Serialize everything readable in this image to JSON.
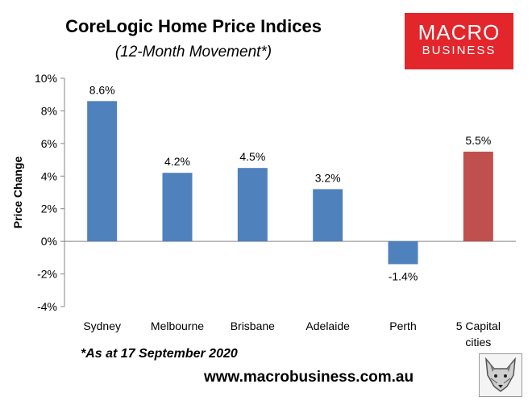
{
  "header": {
    "title": "CoreLogic Home Price Indices",
    "subtitle": "(12-Month Movement*)"
  },
  "logo": {
    "line1": "MACRO",
    "line2": "BUSINESS",
    "color": "#e3262b"
  },
  "footnote": "*As at 17 September 2020",
  "website": "www.macrobusiness.com.au",
  "fox_icon": "fox-head-icon",
  "chart_data": {
    "type": "bar",
    "ylabel": "Price Change",
    "ylim": [
      -4,
      10
    ],
    "yticks": [
      -4,
      -2,
      0,
      2,
      4,
      6,
      8,
      10
    ],
    "ytick_labels": [
      "-4%",
      "-2%",
      "0%",
      "2%",
      "4%",
      "6%",
      "8%",
      "10%"
    ],
    "grid": false,
    "categories": [
      "Sydney",
      "Melbourne",
      "Brisbane",
      "Adelaide",
      "Perth",
      "5 Capital cities"
    ],
    "category_lines": [
      [
        "Sydney"
      ],
      [
        "Melbourne"
      ],
      [
        "Brisbane"
      ],
      [
        "Adelaide"
      ],
      [
        "Perth"
      ],
      [
        "5 Capital",
        "cities"
      ]
    ],
    "values": [
      8.6,
      4.2,
      4.5,
      3.2,
      -1.4,
      5.5
    ],
    "data_labels": [
      "8.6%",
      "4.2%",
      "4.5%",
      "3.2%",
      "-1.4%",
      "5.5%"
    ],
    "colors": [
      "#4f81bd",
      "#4f81bd",
      "#4f81bd",
      "#4f81bd",
      "#4f81bd",
      "#c0504d"
    ]
  }
}
